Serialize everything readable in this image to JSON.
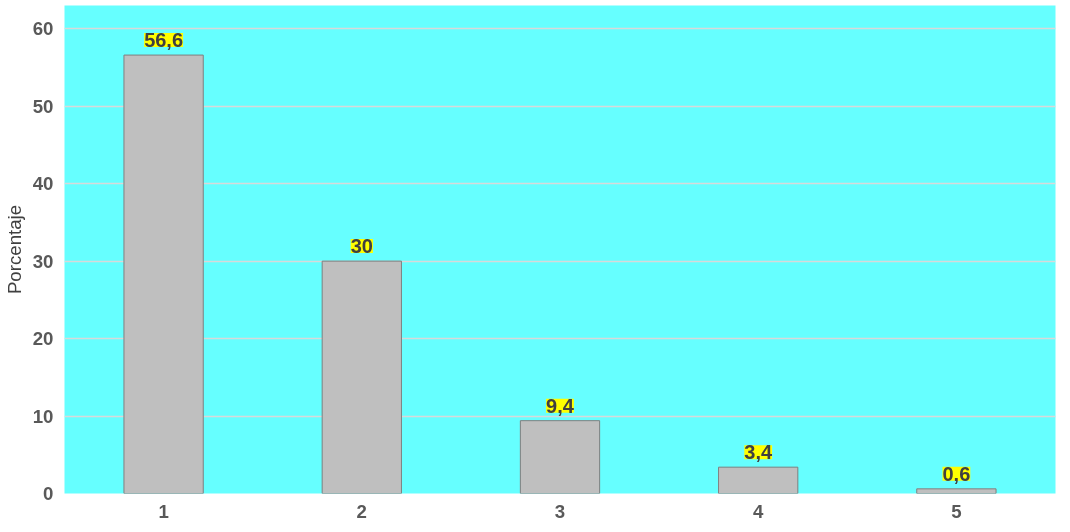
{
  "chart_data": {
    "type": "bar",
    "ylabel": "Porcentaje",
    "categories": [
      "1",
      "2",
      "3",
      "4",
      "5"
    ],
    "values": [
      56.6,
      30,
      9.4,
      3.4,
      0.6
    ],
    "value_labels": [
      "56,6",
      "30",
      "9,4",
      "3,4",
      "0,6"
    ],
    "color": "#bfbfbf",
    "ylim": [
      0,
      63
    ],
    "yticks": [
      0,
      10,
      20,
      30,
      40,
      50,
      60
    ],
    "grid": "y"
  }
}
